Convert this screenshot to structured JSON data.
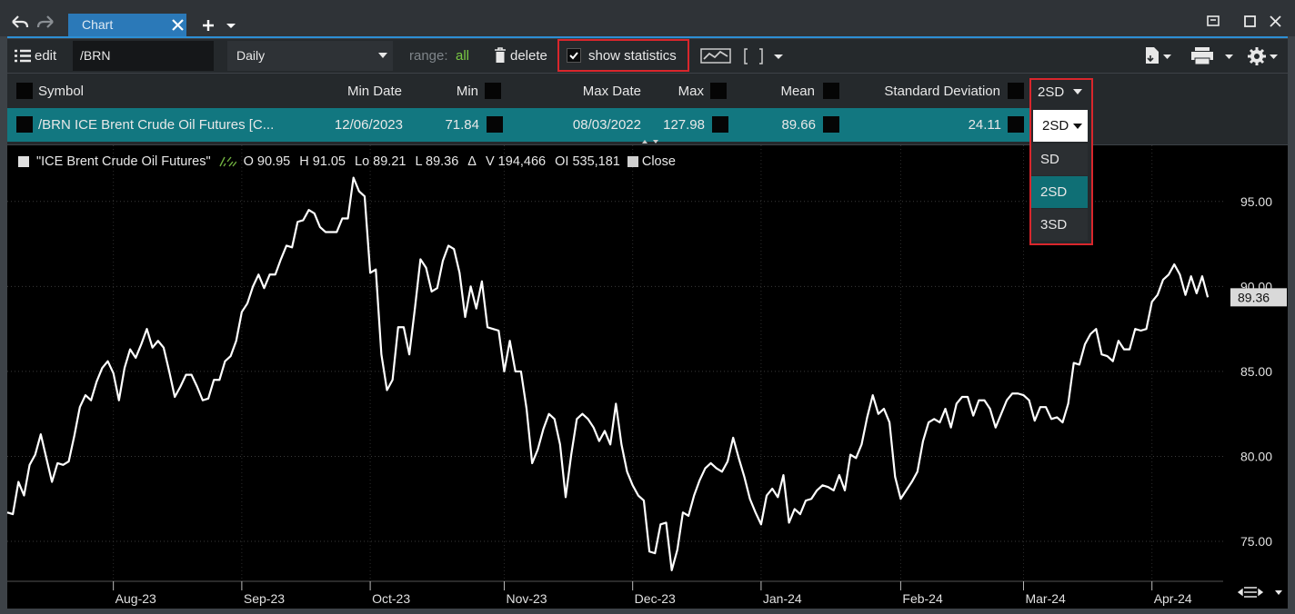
{
  "title_bar": {
    "tab": "Chart"
  },
  "toolbar": {
    "edit": "edit",
    "symbol": "/BRN",
    "interval": "Daily",
    "range_label": "range:",
    "range_value": "all",
    "delete": "delete",
    "show_statistics": "show statistics"
  },
  "statistics": {
    "headers": [
      "Symbol",
      "Min Date",
      "Min",
      "Max Date",
      "Max",
      "Mean",
      "Standard Deviation"
    ],
    "sd_selector": "2SD",
    "row": [
      "/BRN ICE Brent Crude Oil Futures [C...",
      "12/06/2023",
      "71.84",
      "08/03/2022",
      "127.98",
      "89.66",
      "24.11"
    ],
    "sd_dropdown": {
      "selected": "2SD",
      "options": [
        "SD",
        "2SD",
        "3SD"
      ]
    }
  },
  "legend": {
    "name": "\"ICE Brent Crude Oil Futures\"",
    "fields": [
      "O 90.95",
      "H 91.05",
      "Lo 89.21",
      "L 89.36",
      "Δ",
      "V 194,466",
      "OI 535,181"
    ],
    "close": "Close"
  },
  "chart_data": {
    "type": "line",
    "categories": [
      null,
      null,
      null,
      null,
      null,
      null,
      null,
      null,
      null,
      null,
      null,
      null,
      null,
      null,
      null,
      null,
      null,
      null,
      null,
      "Aug-23",
      null,
      null,
      null,
      null,
      null,
      null,
      null,
      null,
      null,
      null,
      null,
      null,
      null,
      null,
      null,
      null,
      null,
      null,
      null,
      null,
      null,
      null,
      "Sep-23",
      null,
      null,
      null,
      null,
      null,
      null,
      null,
      null,
      null,
      null,
      null,
      null,
      null,
      null,
      null,
      null,
      null,
      null,
      null,
      null,
      null,
      null,
      "Oct-23",
      null,
      null,
      null,
      null,
      null,
      null,
      null,
      null,
      null,
      null,
      null,
      null,
      null,
      null,
      null,
      null,
      null,
      null,
      null,
      null,
      null,
      null,
      null,
      "Nov-23",
      null,
      null,
      null,
      null,
      null,
      null,
      null,
      null,
      null,
      null,
      null,
      null,
      null,
      null,
      null,
      null,
      null,
      null,
      null,
      null,
      null,
      null,
      "Dec-23",
      null,
      null,
      null,
      null,
      null,
      null,
      null,
      null,
      null,
      null,
      null,
      null,
      null,
      null,
      null,
      null,
      null,
      null,
      null,
      null,
      null,
      null,
      "Jan-24",
      null,
      null,
      null,
      null,
      null,
      null,
      null,
      null,
      null,
      null,
      null,
      null,
      null,
      null,
      null,
      null,
      null,
      null,
      null,
      null,
      null,
      null,
      null,
      null,
      "Feb-24",
      null,
      null,
      null,
      null,
      null,
      null,
      null,
      null,
      null,
      null,
      null,
      null,
      null,
      null,
      null,
      null,
      null,
      null,
      null,
      null,
      null,
      "Mar-24",
      null,
      null,
      null,
      null,
      null,
      null,
      null,
      null,
      null,
      null,
      null,
      null,
      null,
      null,
      null,
      null,
      null,
      null,
      null,
      null,
      null,
      null,
      "Apr-24",
      null,
      null,
      null,
      null,
      null,
      null,
      null,
      null,
      null,
      null
    ],
    "values": [
      76.7,
      76.6,
      78.5,
      77.7,
      79.5,
      80.1,
      81.3,
      79.9,
      78.5,
      79.6,
      79.5,
      79.7,
      81.2,
      82.9,
      83.6,
      83.3,
      84.4,
      85.2,
      85.6,
      84.9,
      83.3,
      85.2,
      86.3,
      85.8,
      86.6,
      87.5,
      86.4,
      86.8,
      86.4,
      85.0,
      83.5,
      84.1,
      84.8,
      84.8,
      84.1,
      83.3,
      83.4,
      84.5,
      84.5,
      85.6,
      85.9,
      86.8,
      88.5,
      89.0,
      90.0,
      90.7,
      89.9,
      90.7,
      90.7,
      91.6,
      92.4,
      92.3,
      93.8,
      93.9,
      94.5,
      94.3,
      93.5,
      93.2,
      93.2,
      93.2,
      94.0,
      94.0,
      96.4,
      95.6,
      95.3,
      90.8,
      91.0,
      86.0,
      83.9,
      84.5,
      87.6,
      87.6,
      86.0,
      88.7,
      91.6,
      91.1,
      89.7,
      89.9,
      91.5,
      92.4,
      92.2,
      90.8,
      88.2,
      90.0,
      88.7,
      90.3,
      87.6,
      87.5,
      87.4,
      85.0,
      86.8,
      85.0,
      85.0,
      82.8,
      79.6,
      80.4,
      81.6,
      82.5,
      82.2,
      80.7,
      77.6,
      80.1,
      82.2,
      82.5,
      82.2,
      81.7,
      80.9,
      81.5,
      80.7,
      83.1,
      80.7,
      79.1,
      78.3,
      77.7,
      77.4,
      74.4,
      74.3,
      76.0,
      76.1,
      73.3,
      74.5,
      76.7,
      76.5,
      77.7,
      78.6,
      79.3,
      79.6,
      79.3,
      79.1,
      79.7,
      81.1,
      79.9,
      78.8,
      77.5,
      76.7,
      76.0,
      77.7,
      78.1,
      77.6,
      78.9,
      76.1,
      76.9,
      76.6,
      77.4,
      77.5,
      78.0,
      78.3,
      78.2,
      78.0,
      78.9,
      78.0,
      80.1,
      79.9,
      80.7,
      82.3,
      83.6,
      82.5,
      82.8,
      82.0,
      78.8,
      77.5,
      78.0,
      78.5,
      79.1,
      80.9,
      82.0,
      82.2,
      82.0,
      82.8,
      81.7,
      83.1,
      83.5,
      83.5,
      82.4,
      83.3,
      83.3,
      82.8,
      81.7,
      82.5,
      83.3,
      83.7,
      83.7,
      83.6,
      83.3,
      82.1,
      82.9,
      82.9,
      82.2,
      82.3,
      82.0,
      83.1,
      85.5,
      85.4,
      86.6,
      87.2,
      87.5,
      86.0,
      85.9,
      85.6,
      86.8,
      86.3,
      86.3,
      87.5,
      87.4,
      87.5,
      89.1,
      89.5,
      90.4,
      90.7,
      91.3,
      90.7,
      89.5,
      90.6,
      89.6,
      90.6,
      89.36
    ],
    "color": "#ffffff",
    "ylim": [
      72.65,
      96.7
    ],
    "yticks": [
      {
        "value": 75,
        "label": "75.00"
      },
      {
        "value": 80,
        "label": "80.00"
      },
      {
        "value": 85,
        "label": "85.00"
      },
      {
        "value": 90,
        "label": "90.00"
      },
      {
        "value": 95,
        "label": "95.00"
      }
    ],
    "grid": true
  }
}
